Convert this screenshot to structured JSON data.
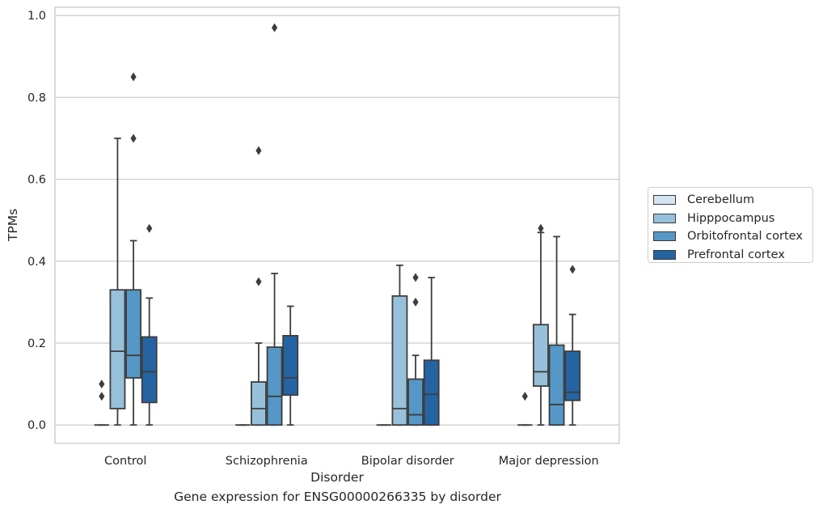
{
  "caption": "Gene expression for ENSG00000266335 by disorder",
  "chart_data": {
    "type": "boxplot",
    "xlabel": "Disorder",
    "ylabel": "TPMs",
    "ylim": [
      -0.045,
      1.02
    ],
    "yticks": [
      "0.0",
      "0.2",
      "0.4",
      "0.6",
      "0.8",
      "1.0"
    ],
    "ytick_values": [
      0.0,
      0.2,
      0.4,
      0.6,
      0.8,
      1.0
    ],
    "grid": true,
    "legend_position": "right",
    "categories": [
      "Control",
      "Schizophrenia",
      "Bipolar disorder",
      "Major depression"
    ],
    "series": [
      {
        "name": "Cerebellum",
        "color": "#d4e4f2",
        "boxes": [
          {
            "q1": 0.0,
            "median": 0.0,
            "q3": 0.0,
            "whisker_low": 0.0,
            "whisker_high": 0.0,
            "outliers": [
              0.07,
              0.1
            ]
          },
          {
            "q1": 0.0,
            "median": 0.0,
            "q3": 0.0,
            "whisker_low": 0.0,
            "whisker_high": 0.0,
            "outliers": []
          },
          {
            "q1": 0.0,
            "median": 0.0,
            "q3": 0.0,
            "whisker_low": 0.0,
            "whisker_high": 0.0,
            "outliers": []
          },
          {
            "q1": 0.0,
            "median": 0.0,
            "q3": 0.0,
            "whisker_low": 0.0,
            "whisker_high": 0.0,
            "outliers": [
              0.07
            ]
          }
        ]
      },
      {
        "name": "Hipppocampus",
        "color": "#97c0da",
        "boxes": [
          {
            "q1": 0.04,
            "median": 0.18,
            "q3": 0.33,
            "whisker_low": 0.0,
            "whisker_high": 0.7,
            "outliers": []
          },
          {
            "q1": 0.0,
            "median": 0.04,
            "q3": 0.105,
            "whisker_low": 0.0,
            "whisker_high": 0.2,
            "outliers": [
              0.35,
              0.67
            ]
          },
          {
            "q1": 0.0,
            "median": 0.04,
            "q3": 0.315,
            "whisker_low": 0.0,
            "whisker_high": 0.39,
            "outliers": []
          },
          {
            "q1": 0.095,
            "median": 0.13,
            "q3": 0.245,
            "whisker_low": 0.0,
            "whisker_high": 0.47,
            "outliers": [
              0.48
            ]
          }
        ]
      },
      {
        "name": "Orbitofrontal cortex",
        "color": "#5597c6",
        "boxes": [
          {
            "q1": 0.115,
            "median": 0.17,
            "q3": 0.33,
            "whisker_low": 0.0,
            "whisker_high": 0.45,
            "outliers": [
              0.7,
              0.85
            ]
          },
          {
            "q1": 0.0,
            "median": 0.07,
            "q3": 0.19,
            "whisker_low": 0.0,
            "whisker_high": 0.37,
            "outliers": [
              0.97
            ]
          },
          {
            "q1": 0.0,
            "median": 0.025,
            "q3": 0.112,
            "whisker_low": 0.0,
            "whisker_high": 0.17,
            "outliers": [
              0.3,
              0.36
            ]
          },
          {
            "q1": 0.0,
            "median": 0.05,
            "q3": 0.195,
            "whisker_low": 0.0,
            "whisker_high": 0.46,
            "outliers": []
          }
        ]
      },
      {
        "name": "Prefrontal cortex",
        "color": "#2564a2",
        "boxes": [
          {
            "q1": 0.055,
            "median": 0.13,
            "q3": 0.215,
            "whisker_low": 0.0,
            "whisker_high": 0.31,
            "outliers": [
              0.48
            ]
          },
          {
            "q1": 0.073,
            "median": 0.115,
            "q3": 0.218,
            "whisker_low": 0.0,
            "whisker_high": 0.29,
            "outliers": []
          },
          {
            "q1": 0.0,
            "median": 0.075,
            "q3": 0.158,
            "whisker_low": 0.0,
            "whisker_high": 0.36,
            "outliers": []
          },
          {
            "q1": 0.06,
            "median": 0.08,
            "q3": 0.18,
            "whisker_low": 0.0,
            "whisker_high": 0.27,
            "outliers": [
              0.38
            ]
          }
        ]
      }
    ]
  }
}
